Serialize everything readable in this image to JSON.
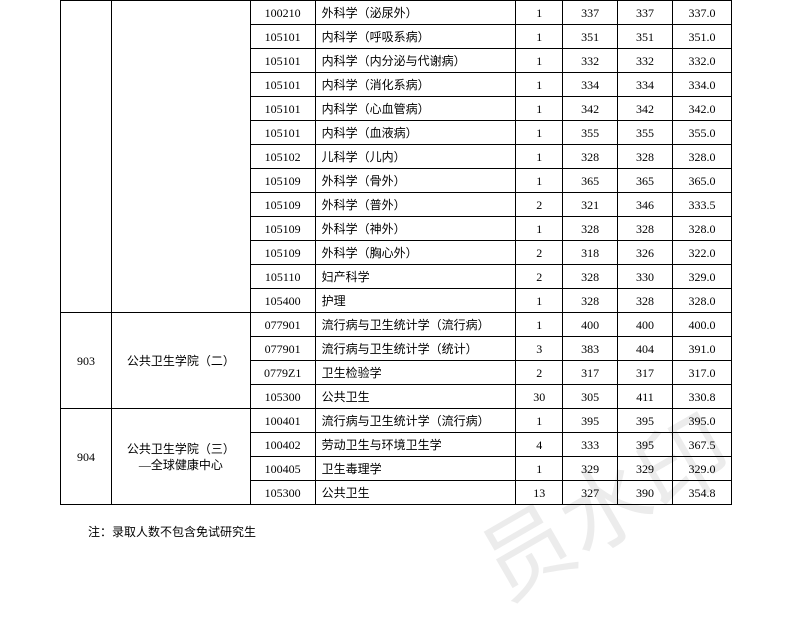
{
  "note": "注：录取人数不包含免试研究生",
  "watermark": "员水印",
  "table": {
    "columns": {
      "width_empty1": 42,
      "width_empty2": 130,
      "width_code": 56,
      "width_name": 190,
      "width_n": 38,
      "width_s1": 46,
      "width_s2": 46,
      "width_s3": 50
    },
    "groups": [
      {
        "code": "",
        "name": "",
        "show_group": true,
        "rowspan": 13,
        "rows": [
          {
            "code": "100210",
            "name": "外科学（泌尿外）",
            "n": "1",
            "s1": "337",
            "s2": "337",
            "s3": "337.0"
          },
          {
            "code": "105101",
            "name": "内科学（呼吸系病）",
            "n": "1",
            "s1": "351",
            "s2": "351",
            "s3": "351.0"
          },
          {
            "code": "105101",
            "name": "内科学（内分泌与代谢病）",
            "n": "1",
            "s1": "332",
            "s2": "332",
            "s3": "332.0"
          },
          {
            "code": "105101",
            "name": "内科学（消化系病）",
            "n": "1",
            "s1": "334",
            "s2": "334",
            "s3": "334.0"
          },
          {
            "code": "105101",
            "name": "内科学（心血管病）",
            "n": "1",
            "s1": "342",
            "s2": "342",
            "s3": "342.0"
          },
          {
            "code": "105101",
            "name": "内科学（血液病）",
            "n": "1",
            "s1": "355",
            "s2": "355",
            "s3": "355.0"
          },
          {
            "code": "105102",
            "name": "儿科学（儿内）",
            "n": "1",
            "s1": "328",
            "s2": "328",
            "s3": "328.0"
          },
          {
            "code": "105109",
            "name": "外科学（骨外）",
            "n": "1",
            "s1": "365",
            "s2": "365",
            "s3": "365.0"
          },
          {
            "code": "105109",
            "name": "外科学（普外）",
            "n": "2",
            "s1": "321",
            "s2": "346",
            "s3": "333.5"
          },
          {
            "code": "105109",
            "name": "外科学（神外）",
            "n": "1",
            "s1": "328",
            "s2": "328",
            "s3": "328.0"
          },
          {
            "code": "105109",
            "name": "外科学（胸心外）",
            "n": "2",
            "s1": "318",
            "s2": "326",
            "s3": "322.0"
          },
          {
            "code": "105110",
            "name": "妇产科学",
            "n": "2",
            "s1": "328",
            "s2": "330",
            "s3": "329.0"
          },
          {
            "code": "105400",
            "name": "护理",
            "n": "1",
            "s1": "328",
            "s2": "328",
            "s3": "328.0"
          }
        ]
      },
      {
        "code": "903",
        "name": "公共卫生学院（二）",
        "show_group": true,
        "rowspan": 4,
        "rows": [
          {
            "code": "077901",
            "name": "流行病与卫生统计学（流行病）",
            "n": "1",
            "s1": "400",
            "s2": "400",
            "s3": "400.0"
          },
          {
            "code": "077901",
            "name": "流行病与卫生统计学（统计）",
            "n": "3",
            "s1": "383",
            "s2": "404",
            "s3": "391.0"
          },
          {
            "code": "0779Z1",
            "name": "卫生检验学",
            "n": "2",
            "s1": "317",
            "s2": "317",
            "s3": "317.0"
          },
          {
            "code": "105300",
            "name": "公共卫生",
            "n": "30",
            "s1": "305",
            "s2": "411",
            "s3": "330.8"
          }
        ]
      },
      {
        "code": "904",
        "name": "公共卫生学院（三）\n—全球健康中心",
        "show_group": true,
        "rowspan": 4,
        "rows": [
          {
            "code": "100401",
            "name": "流行病与卫生统计学（流行病）",
            "n": "1",
            "s1": "395",
            "s2": "395",
            "s3": "395.0"
          },
          {
            "code": "100402",
            "name": "劳动卫生与环境卫生学",
            "n": "4",
            "s1": "333",
            "s2": "395",
            "s3": "367.5"
          },
          {
            "code": "100405",
            "name": "卫生毒理学",
            "n": "1",
            "s1": "329",
            "s2": "329",
            "s3": "329.0"
          },
          {
            "code": "105300",
            "name": "公共卫生",
            "n": "13",
            "s1": "327",
            "s2": "390",
            "s3": "354.8"
          }
        ]
      }
    ]
  }
}
